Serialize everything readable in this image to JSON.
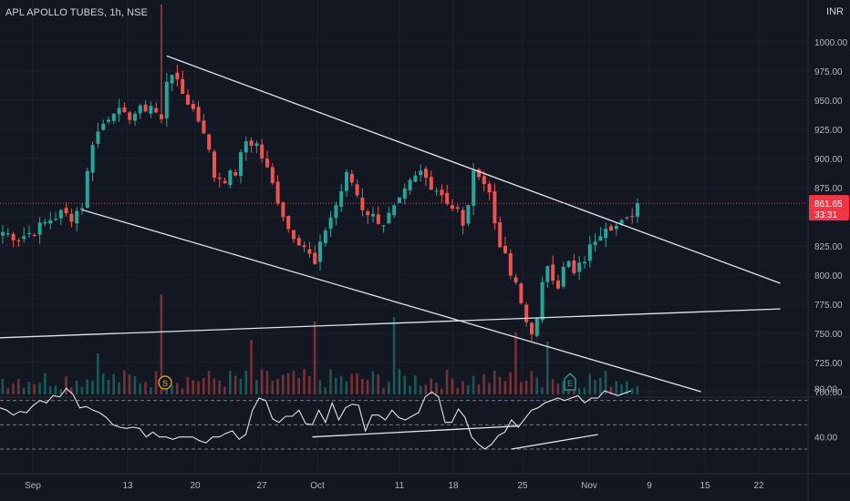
{
  "header": {
    "symbol": "APL APOLLO TUBES",
    "sep1": ", ",
    "interval": "1h",
    "sep2": ", ",
    "exchange": "NSE",
    "currency": "INR"
  },
  "colors": {
    "up": "#26a69a",
    "down": "#ef5350",
    "bg": "#131722",
    "grid": "#1e222d",
    "text": "#b2b5be",
    "line": "#e0e3eb",
    "price_tag": "#f23645"
  },
  "price_tag": {
    "price": "861.65",
    "countdown": "33:31"
  },
  "events": [
    {
      "label": "S",
      "color": "#f7a600",
      "x_date": "2022-09-16"
    },
    {
      "label": "E",
      "color": "#26a69a",
      "x_date": "2022-10-31"
    }
  ],
  "chart_data": [
    {
      "type": "candlestick",
      "title": "",
      "price_axis": {
        "ticks": [
          700,
          725,
          750,
          775,
          800,
          825,
          850,
          875,
          900,
          925,
          950,
          975,
          1000
        ],
        "labels": [
          "700.00",
          "725.00",
          "750.00",
          "775.00",
          "800.00",
          "825.00",
          "",
          "875.00",
          "900.00",
          "925.00",
          "950.00",
          "975.00",
          "1000.00"
        ],
        "range": [
          698,
          1032
        ]
      },
      "time_axis": {
        "labels": [
          "Sep",
          "13",
          "20",
          "27",
          "Oct",
          "11",
          "18",
          "25",
          "Nov",
          "9",
          "15",
          "22"
        ]
      },
      "last_price": 861.65,
      "waypoints": [
        [
          0,
          837
        ],
        [
          3,
          832
        ],
        [
          6,
          838
        ],
        [
          9,
          848
        ],
        [
          11,
          853
        ],
        [
          13,
          850
        ],
        [
          14,
          855
        ],
        [
          15,
          860
        ],
        [
          17,
          915
        ],
        [
          19,
          930
        ],
        [
          21,
          943
        ],
        [
          23,
          935
        ],
        [
          26,
          941
        ],
        [
          28,
          946
        ],
        [
          30,
          932
        ],
        [
          31,
          968
        ],
        [
          32,
          975
        ],
        [
          33,
          963
        ],
        [
          36,
          942
        ],
        [
          38,
          925
        ],
        [
          40,
          885
        ],
        [
          42,
          883
        ],
        [
          44,
          888
        ],
        [
          46,
          915
        ],
        [
          48,
          912
        ],
        [
          50,
          890
        ],
        [
          52,
          865
        ],
        [
          54,
          840
        ],
        [
          57,
          825
        ],
        [
          59,
          808
        ],
        [
          61,
          840
        ],
        [
          63,
          860
        ],
        [
          65,
          885
        ],
        [
          66,
          880
        ],
        [
          68,
          858
        ],
        [
          70,
          850
        ],
        [
          72,
          845
        ],
        [
          75,
          862
        ],
        [
          77,
          878
        ],
        [
          79,
          888
        ],
        [
          81,
          878
        ],
        [
          83,
          870
        ],
        [
          85,
          858
        ],
        [
          86,
          855
        ],
        [
          87,
          840
        ],
        [
          89,
          885
        ],
        [
          90,
          889
        ],
        [
          92,
          870
        ],
        [
          93,
          845
        ],
        [
          94,
          828
        ],
        [
          96,
          800
        ],
        [
          97,
          790
        ],
        [
          98,
          775
        ],
        [
          99,
          760
        ],
        [
          100,
          753
        ],
        [
          101,
          760
        ],
        [
          102,
          790
        ],
        [
          103,
          810
        ],
        [
          104,
          800
        ],
        [
          105,
          792
        ],
        [
          106,
          805
        ],
        [
          107,
          810
        ],
        [
          108,
          800
        ],
        [
          110,
          814
        ],
        [
          112,
          832
        ],
        [
          114,
          844
        ],
        [
          116,
          842
        ],
        [
          118,
          846
        ],
        [
          120,
          861.65
        ]
      ],
      "volume_peaks": [
        [
          18,
          45
        ],
        [
          30,
          110
        ],
        [
          47,
          60
        ],
        [
          59,
          80
        ],
        [
          74,
          85
        ],
        [
          97,
          68
        ],
        [
          103,
          58
        ]
      ],
      "trendlines": [
        {
          "name": "channel-upper",
          "p1": [
            31,
            988
          ],
          "p2": [
            147,
            793
          ]
        },
        {
          "name": "channel-lower",
          "p1": [
            15,
            856
          ],
          "p2": [
            132,
            700
          ]
        },
        {
          "name": "support",
          "p1": [
            -2,
            746
          ],
          "p2": [
            147,
            771
          ]
        }
      ]
    },
    {
      "type": "line",
      "title": "",
      "axis": {
        "ticks": [
          40,
          80
        ],
        "labels": [
          "40.00",
          "80.00"
        ],
        "range": [
          20,
          92
        ],
        "levels": [
          30,
          50,
          70
        ]
      },
      "values": [
        64,
        62,
        58,
        61,
        60,
        66,
        70,
        68,
        74,
        73,
        80,
        75,
        64,
        65,
        62,
        60,
        56,
        50,
        48,
        47,
        48,
        47,
        40,
        44,
        40,
        40,
        38,
        40,
        40,
        40,
        37,
        35,
        40,
        40,
        43,
        45,
        38,
        42,
        62,
        72,
        70,
        55,
        52,
        57,
        57,
        62,
        51,
        50,
        62,
        52,
        68,
        54,
        64,
        67,
        66,
        45,
        58,
        58,
        54,
        62,
        56,
        54,
        57,
        60,
        73,
        77,
        73,
        52,
        52,
        63,
        56,
        40,
        34,
        30,
        34,
        41,
        44,
        54,
        48,
        55,
        62,
        64,
        68,
        70,
        72,
        70,
        72,
        74,
        68,
        72,
        72,
        78,
        76,
        74,
        76,
        78
      ],
      "trendlines": [
        {
          "name": "rsi-trend-1",
          "p1": [
            47,
            40
          ],
          "p2": [
            78,
            49
          ]
        },
        {
          "name": "rsi-trend-2",
          "p1": [
            77,
            30
          ],
          "p2": [
            90,
            42
          ]
        }
      ]
    }
  ]
}
